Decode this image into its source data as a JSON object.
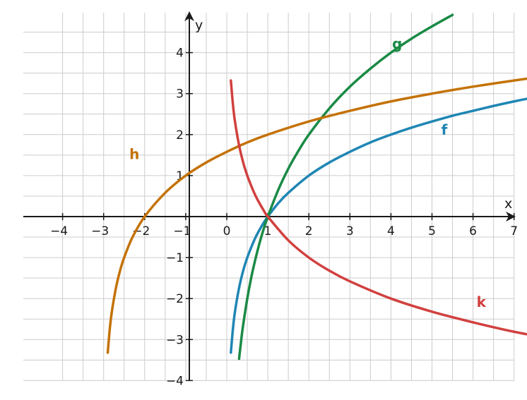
{
  "chart_data": {
    "type": "line",
    "title": "",
    "xlabel": "x",
    "ylabel": "y",
    "xlim": [
      -4,
      8
    ],
    "ylim": [
      -4,
      4.8
    ],
    "grid": true,
    "x_ticks": [
      -4,
      -3,
      -2,
      -1,
      0,
      1,
      2,
      3,
      4,
      5,
      6,
      7
    ],
    "x_tick_labels": [
      "−4",
      "−3",
      "−2",
      "−1",
      "0",
      "1",
      "2",
      "3",
      "4",
      "5",
      "6",
      "7"
    ],
    "y_ticks": [
      -4,
      -3,
      -2,
      -1,
      1,
      2,
      3,
      4
    ],
    "y_tick_labels": [
      "−4",
      "−3",
      "−2",
      "−1",
      "1",
      "2",
      "3",
      "4"
    ],
    "series": [
      {
        "name": "f",
        "color": "#1f86b4",
        "x": [
          0.1,
          0.15,
          0.2,
          0.3,
          0.4,
          0.5,
          0.6,
          0.7,
          0.8,
          0.9,
          1,
          1.25,
          1.5,
          2,
          2.5,
          3,
          3.5,
          4,
          4.5,
          5,
          5.5,
          6,
          6.5,
          7,
          7.5,
          8
        ],
        "y": [
          -3.32,
          -2.74,
          -2.32,
          -1.74,
          -1.32,
          -1.0,
          -0.74,
          -0.51,
          -0.32,
          -0.15,
          0.0,
          0.32,
          0.58,
          1.0,
          1.32,
          1.58,
          1.81,
          2.0,
          2.17,
          2.32,
          2.46,
          2.58,
          2.7,
          2.81,
          2.91,
          3.0
        ]
      },
      {
        "name": "g",
        "color": "#1a8a45",
        "x": [
          0.3,
          0.35,
          0.4,
          0.5,
          0.6,
          0.7,
          0.8,
          0.9,
          1,
          1.25,
          1.5,
          1.75,
          2,
          2.5,
          3,
          3.5,
          4,
          4.5,
          5,
          5.5
        ],
        "y": [
          -3.47,
          -3.03,
          -2.64,
          -2.0,
          -1.47,
          -1.03,
          -0.64,
          -0.3,
          0.0,
          0.64,
          1.17,
          1.61,
          2.0,
          2.64,
          3.17,
          3.61,
          4.0,
          4.34,
          4.64,
          4.92
        ]
      },
      {
        "name": "h",
        "color": "#c47206",
        "x": [
          -2.9,
          -2.85,
          -2.8,
          -2.7,
          -2.6,
          -2.5,
          -2.3,
          -2,
          -1.5,
          -1,
          -0.5,
          0,
          0.5,
          1,
          2,
          3,
          4,
          5,
          6,
          7,
          8
        ],
        "y": [
          -3.32,
          -2.74,
          -2.32,
          -1.74,
          -1.32,
          -1.0,
          -0.51,
          0.0,
          0.58,
          1.0,
          1.32,
          1.58,
          1.81,
          2.0,
          2.32,
          2.58,
          2.81,
          3.0,
          3.17,
          3.32,
          3.46
        ]
      },
      {
        "name": "k",
        "color": "#d1403e",
        "x": [
          0.1,
          0.15,
          0.2,
          0.3,
          0.4,
          0.5,
          0.6,
          0.7,
          0.8,
          0.9,
          1,
          1.5,
          2,
          2.5,
          3,
          4,
          5,
          6,
          7,
          8
        ],
        "y": [
          3.32,
          2.74,
          2.32,
          1.74,
          1.32,
          1.0,
          0.74,
          0.51,
          0.32,
          0.15,
          0.0,
          -0.58,
          -1.0,
          -1.32,
          -1.58,
          -2.0,
          -2.32,
          -2.58,
          -2.81,
          -3.0
        ]
      }
    ],
    "annotations": [
      {
        "text": "f",
        "x": 5.3,
        "y": 2.0,
        "color": "#1f86b4"
      },
      {
        "text": "g",
        "x": 4.15,
        "y": 4.1,
        "color": "#1a8a45"
      },
      {
        "text": "h",
        "x": -2.25,
        "y": 1.4,
        "color": "#c47206"
      },
      {
        "text": "k",
        "x": 6.2,
        "y": -2.2,
        "color": "#d1403e"
      }
    ]
  }
}
